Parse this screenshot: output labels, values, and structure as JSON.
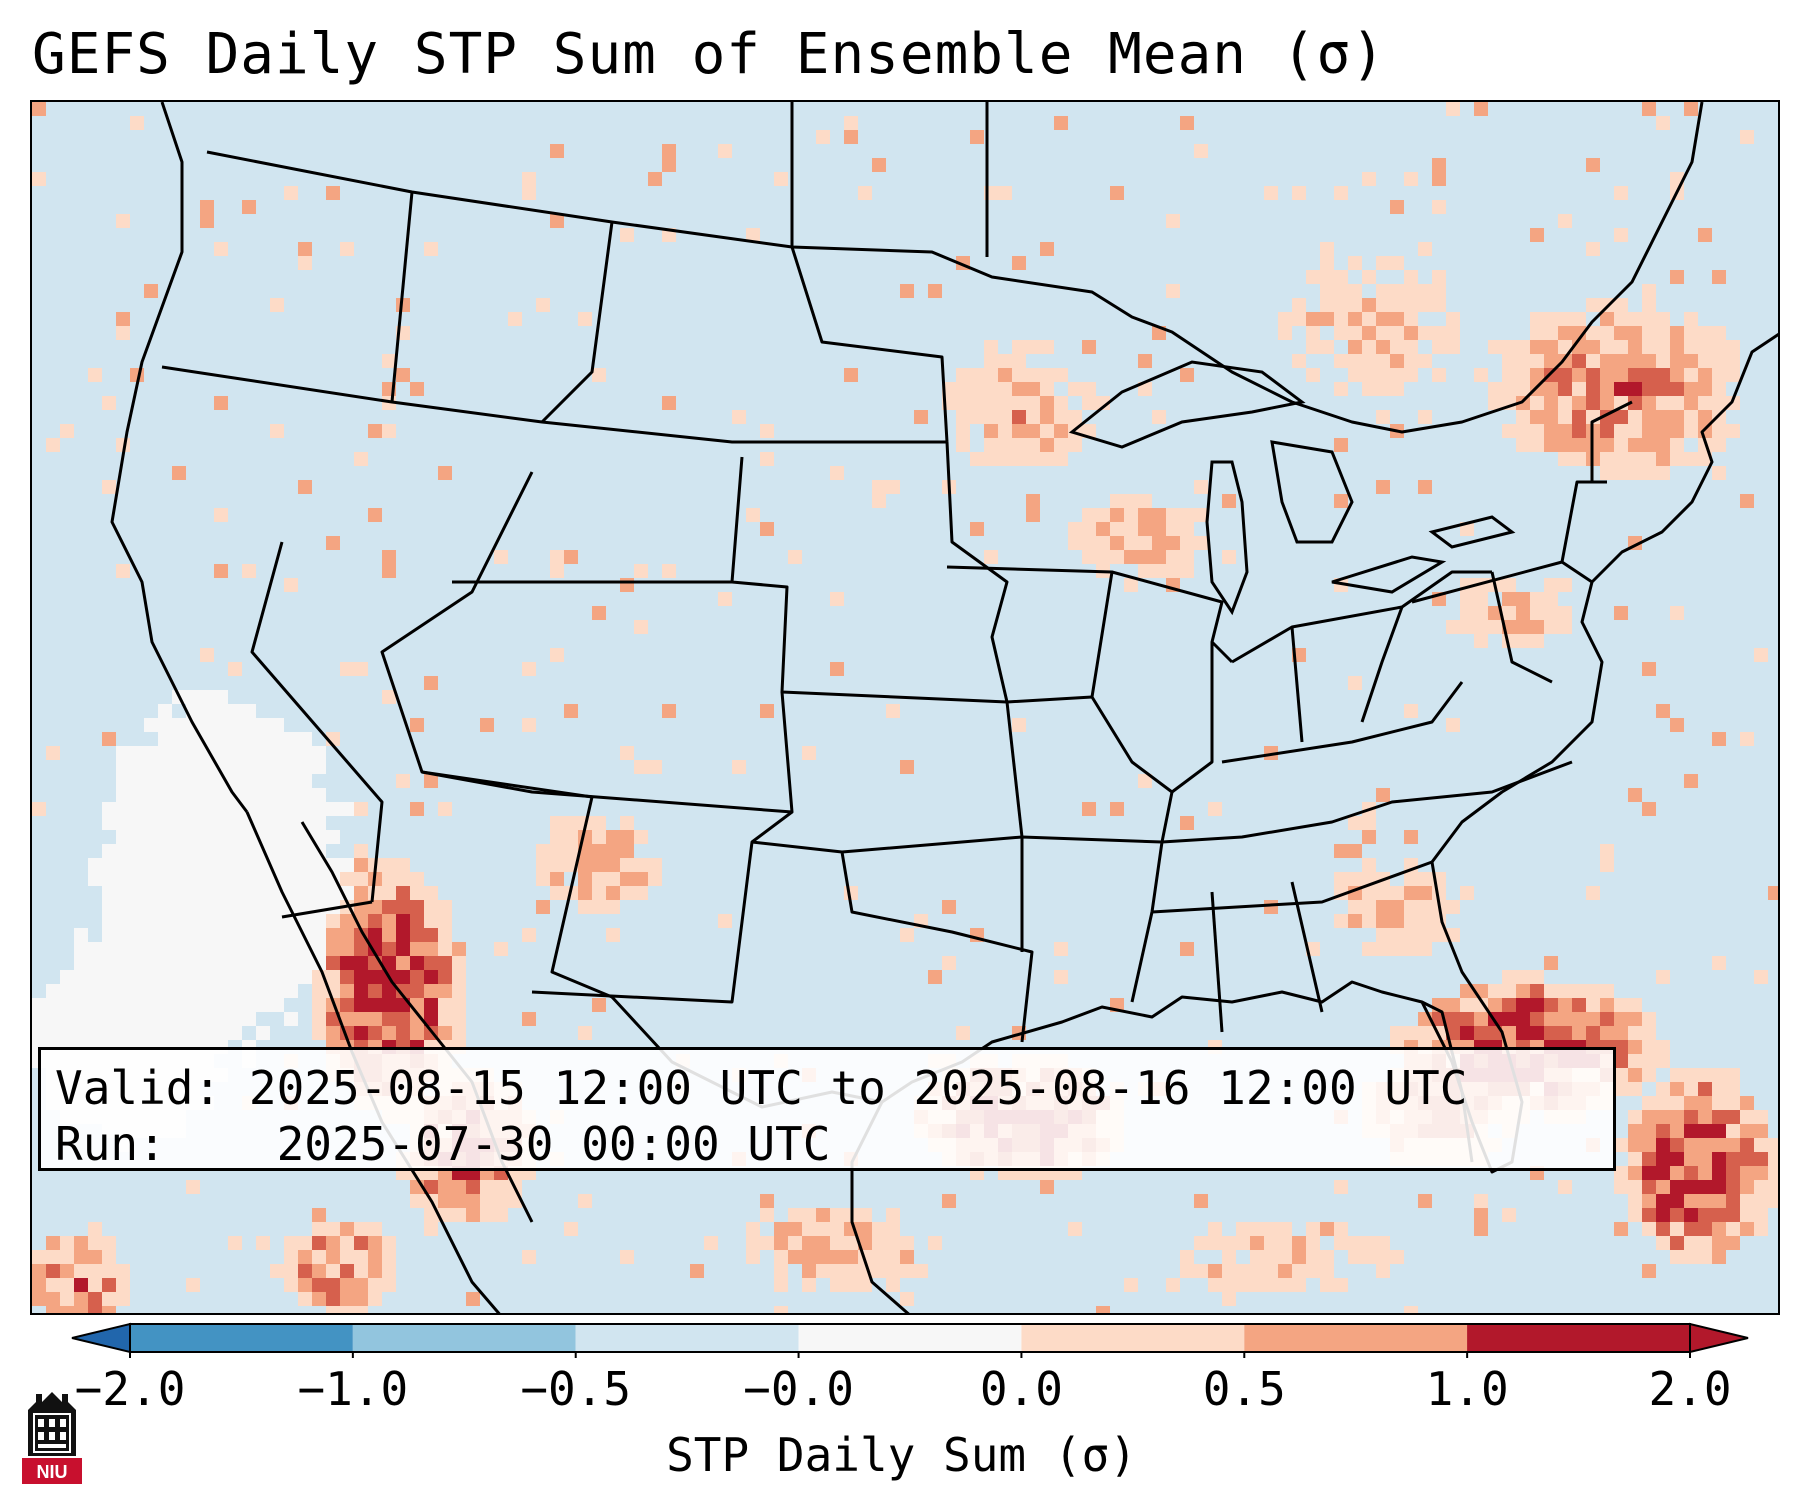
{
  "title": "GEFS Daily STP Sum of Ensemble Mean (σ)",
  "info": {
    "valid_label": "Valid:",
    "valid_value": "2025-08-15 12:00 UTC to 2025-08-16 12:00 UTC",
    "run_label": "Run:",
    "run_value": "2025-07-30 00:00 UTC"
  },
  "colorbar": {
    "label": "STP Daily Sum (σ)",
    "ticks": [
      "−2.0",
      "−1.0",
      "−0.5",
      "−0.0",
      "0.0",
      "0.5",
      "1.0",
      "2.0"
    ],
    "colors": [
      "#4393c3",
      "#92c5de",
      "#d1e5f0",
      "#f7f7f7",
      "#fddbc7",
      "#f4a582",
      "#d6604d",
      "#b2182b"
    ],
    "extend_low_color": "#2166ac",
    "extend_high_color": "#b2182b"
  },
  "map": {
    "background_color": "#d1e5f0",
    "projection": "Lambert Conformal, CONUS",
    "highlight_regions": [
      "Gulf of Mexico coast",
      "Baja California / NW Mexico",
      "Western Atlantic off Southeast US",
      "New England / Quebec",
      "Upper Midwest",
      "Pacific off Baja (near-zero)"
    ]
  },
  "logo": {
    "text": "NIU",
    "color": "#c8102e"
  }
}
